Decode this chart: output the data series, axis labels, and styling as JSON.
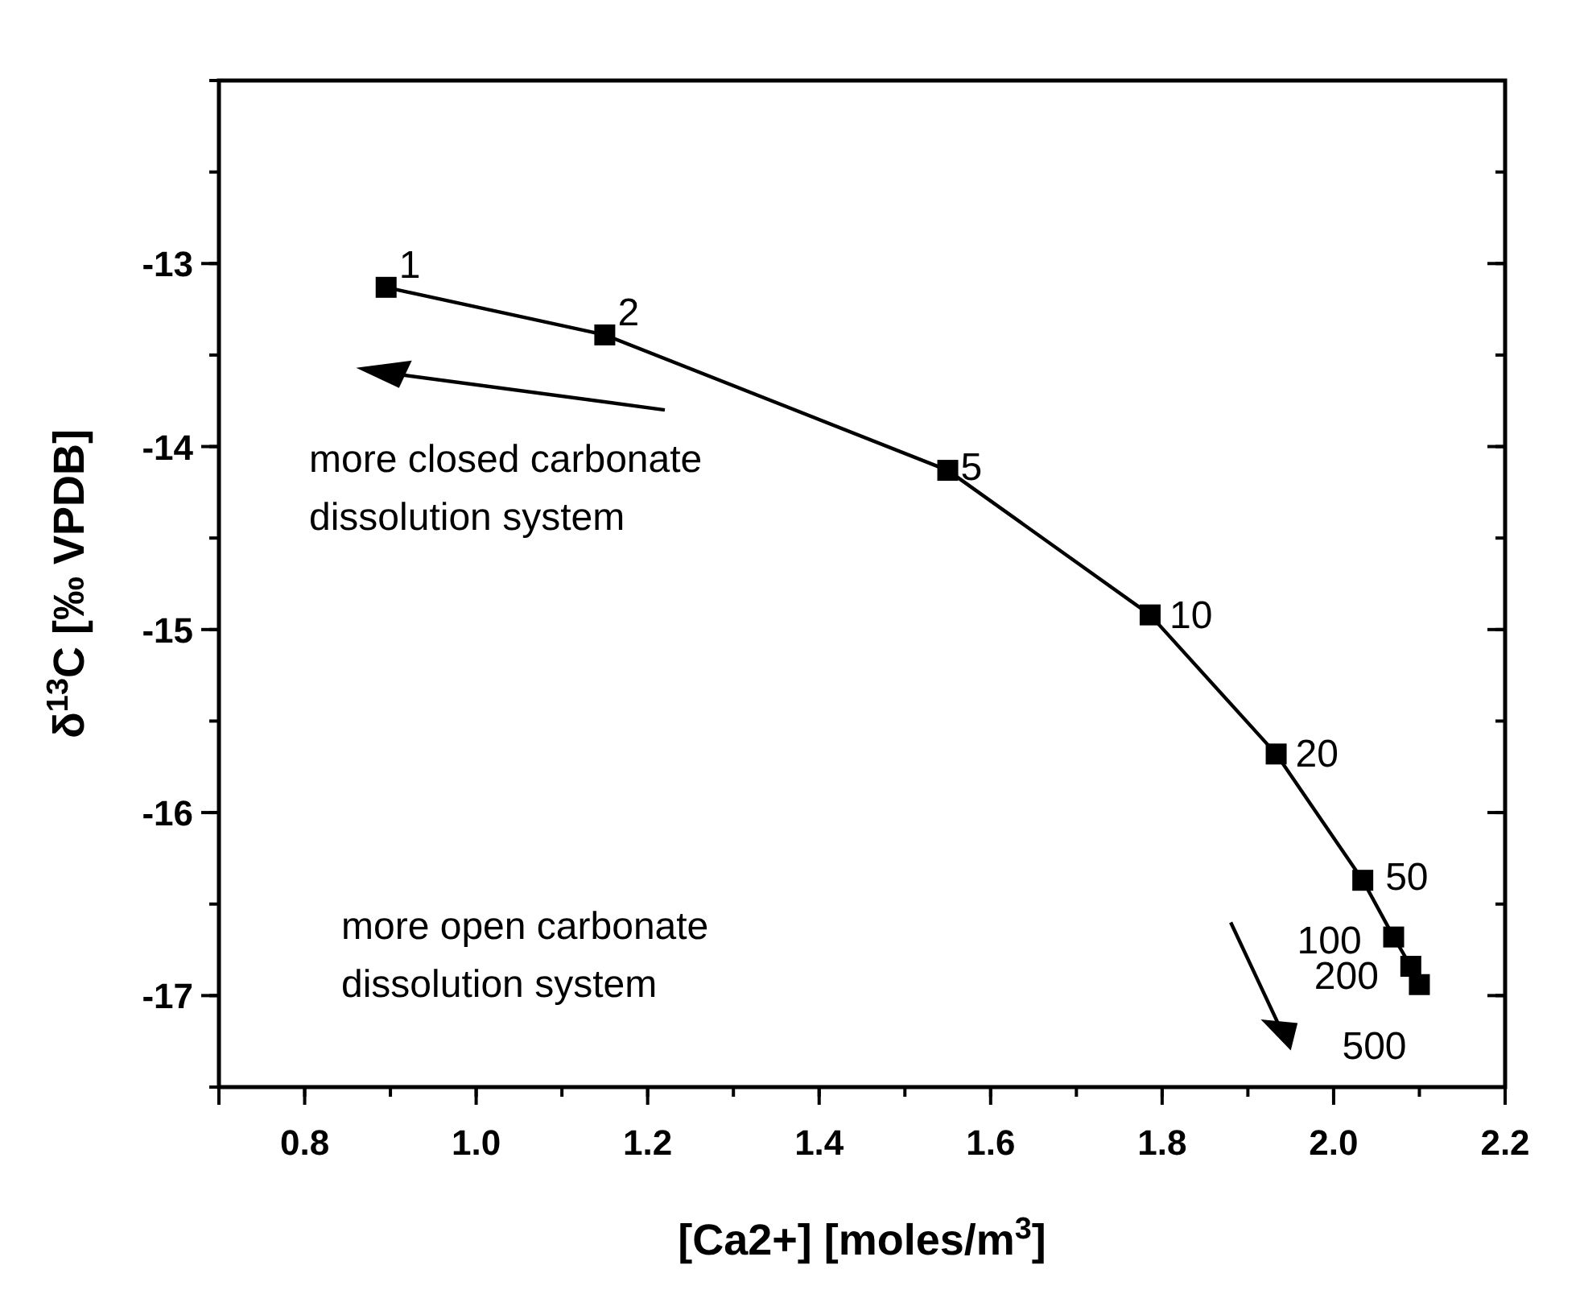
{
  "chart_data": {
    "type": "line",
    "xlabel": "[Ca2+] [moles/m$^{3}$]",
    "ylabel": "δ$^{13}$C [‰ VPDB]",
    "x": [
      0.895,
      1.15,
      1.55,
      1.786,
      1.933,
      2.034,
      2.07,
      2.09,
      2.1
    ],
    "series": [
      {
        "color": "#000000",
        "values": [
          -13.13,
          -13.39,
          -14.13,
          -14.92,
          -15.68,
          -16.37,
          -16.68,
          -16.84,
          -16.94
        ]
      }
    ],
    "marker": "square",
    "line_style": "solid",
    "grid": false,
    "xlim": [
      0.7,
      2.2
    ],
    "xticks": [
      {
        "value": 0.7,
        "label": null
      },
      0.8,
      {
        "value": 1,
        "label": "1.0"
      },
      1.2,
      1.4,
      1.6,
      1.8,
      {
        "value": 2,
        "label": "2.0"
      },
      2.2
    ],
    "ylim": [
      -17.5,
      -12
    ],
    "yticks": [
      -13,
      -14,
      -15,
      -16,
      -17
    ],
    "annotations": [
      {
        "text": "1",
        "x": 0.895,
        "y": -13.13
      },
      {
        "text": "2",
        "x": 1.15,
        "y": -13.39
      },
      {
        "text": "5",
        "x": 1.55,
        "y": -14.13
      },
      {
        "text": "10",
        "x": 1.786,
        "y": -14.92
      },
      {
        "text": "20",
        "x": 1.933,
        "y": -15.68
      },
      {
        "text": "50",
        "x": 2.034,
        "y": -16.37
      },
      {
        "text": "100",
        "x": 2.07,
        "y": -16.68
      },
      {
        "text": "200",
        "x": 2.09,
        "y": -16.84
      },
      {
        "text": "500",
        "x": 2.1,
        "y": -16.94
      },
      "more closed carbonate\ndissolution system",
      "more open carbonate\ndissolution system"
    ]
  }
}
